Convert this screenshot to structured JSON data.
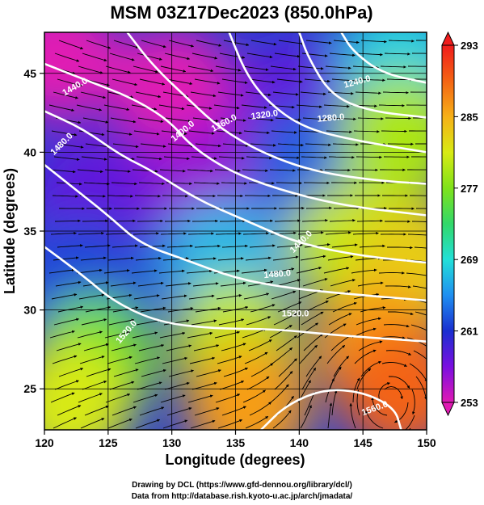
{
  "chart_data": {
    "type": "heatmap",
    "title": "MSM 03Z17Dec2023 (850.0hPa)",
    "xlabel": "Longitude (degrees)",
    "ylabel": "Latitude (degrees)",
    "xlim": [
      120,
      150
    ],
    "ylim": [
      22.4,
      47.6
    ],
    "x_ticks": [
      120,
      125,
      130,
      135,
      140,
      145,
      150
    ],
    "y_ticks": [
      25,
      30,
      35,
      40,
      45
    ],
    "x_tick_labels": [
      "120",
      "125",
      "130",
      "135",
      "140",
      "145",
      "150"
    ],
    "y_tick_labels": [
      "25",
      "30",
      "35",
      "40",
      "45"
    ],
    "grid": true,
    "colorbar": {
      "label_values": [
        293,
        285,
        277,
        269,
        261,
        253
      ],
      "labels": [
        "293",
        "285",
        "277",
        "269",
        "261",
        "253"
      ],
      "range": [
        253,
        293
      ],
      "colormap": [
        "#e01ab4",
        "#7a0fe0",
        "#1a2fd0",
        "#1f8ff0",
        "#22e0d8",
        "#32d86a",
        "#7fe21a",
        "#d8ea14",
        "#f6b018",
        "#f46414",
        "#f01c1c"
      ]
    },
    "temperature_field": [
      {
        "lon": 121,
        "lat": 46,
        "value": 253
      },
      {
        "lon": 130,
        "lat": 44,
        "value": 253
      },
      {
        "lon": 140,
        "lat": 43,
        "value": 258
      },
      {
        "lon": 148,
        "lat": 46,
        "value": 268
      },
      {
        "lon": 124,
        "lat": 37,
        "value": 258
      },
      {
        "lon": 133,
        "lat": 38,
        "value": 256
      },
      {
        "lon": 141,
        "lat": 39,
        "value": 263
      },
      {
        "lon": 148,
        "lat": 41,
        "value": 279
      },
      {
        "lon": 123,
        "lat": 32,
        "value": 262
      },
      {
        "lon": 134,
        "lat": 33,
        "value": 267
      },
      {
        "lon": 144,
        "lat": 34,
        "value": 280
      },
      {
        "lon": 149,
        "lat": 33,
        "value": 283
      },
      {
        "lon": 124,
        "lat": 27,
        "value": 276
      },
      {
        "lon": 135,
        "lat": 28,
        "value": 280
      },
      {
        "lon": 146,
        "lat": 28,
        "value": 286
      },
      {
        "lon": 122,
        "lat": 24,
        "value": 281
      },
      {
        "lon": 136,
        "lat": 24,
        "value": 286
      },
      {
        "lon": 148,
        "lat": 25,
        "value": 289
      }
    ],
    "contour_labels": [
      "1440.0",
      "1400.0",
      "1480.0",
      "1360.0",
      "1320.0",
      "1240.0",
      "1280.0",
      "1440.0",
      "1480.0",
      "1520.0",
      "1520.0",
      "1560.0"
    ],
    "contours": [
      {
        "level": "1240.0",
        "points": [
          [
            143.3,
            47.6
          ],
          [
            144.2,
            46.4
          ],
          [
            146.5,
            45.0
          ],
          [
            150,
            44.4
          ]
        ]
      },
      {
        "level": "1280.0",
        "points": [
          [
            140.0,
            47.6
          ],
          [
            140.7,
            46.0
          ],
          [
            142.5,
            43.6
          ],
          [
            145.5,
            42.6
          ],
          [
            150,
            42.2
          ]
        ]
      },
      {
        "level": "1320.0",
        "points": [
          [
            134.5,
            47.6
          ],
          [
            135.8,
            45.0
          ],
          [
            137.5,
            43.2
          ],
          [
            140.2,
            41.6
          ],
          [
            144.0,
            40.8
          ],
          [
            150,
            40.0
          ]
        ]
      },
      {
        "level": "1360.0",
        "points": [
          [
            126.5,
            47.6
          ],
          [
            128.5,
            45.5
          ],
          [
            131.5,
            43.2
          ],
          [
            133.8,
            41.5
          ],
          [
            137.0,
            40.0
          ],
          [
            141.0,
            38.8
          ],
          [
            146.0,
            38.2
          ],
          [
            150,
            38.0
          ]
        ]
      },
      {
        "level": "1400.0",
        "points": [
          [
            120,
            45.6
          ],
          [
            123.5,
            44.5
          ],
          [
            127.0,
            43.4
          ],
          [
            129.8,
            42.0
          ],
          [
            131.5,
            40.4
          ],
          [
            134.5,
            38.8
          ],
          [
            138.5,
            37.6
          ],
          [
            143.5,
            36.6
          ],
          [
            150,
            36.0
          ]
        ]
      },
      {
        "level": "1440.0",
        "points": [
          [
            120,
            42.6
          ],
          [
            123.0,
            41.5
          ],
          [
            126.0,
            39.8
          ],
          [
            128.5,
            38.8
          ],
          [
            132.0,
            37.0
          ],
          [
            136.0,
            35.6
          ],
          [
            140.0,
            34.2
          ],
          [
            145.0,
            33.4
          ],
          [
            150,
            33.0
          ]
        ]
      },
      {
        "level": "1480.0",
        "points": [
          [
            120,
            39.2
          ],
          [
            122.5,
            37.6
          ],
          [
            125.0,
            36.0
          ],
          [
            127.5,
            34.2
          ],
          [
            131.0,
            33.2
          ],
          [
            135.0,
            32.0
          ],
          [
            139.0,
            31.4
          ],
          [
            144.0,
            31.0
          ],
          [
            150,
            30.6
          ]
        ]
      },
      {
        "level": "1520.0",
        "points": [
          [
            120,
            34.0
          ],
          [
            123.0,
            32.2
          ],
          [
            125.5,
            30.5
          ],
          [
            129.0,
            29.2
          ],
          [
            133.5,
            28.8
          ],
          [
            138.0,
            28.8
          ],
          [
            143.0,
            28.4
          ],
          [
            150,
            28.0
          ]
        ]
      },
      {
        "level": "1560.0",
        "points": [
          [
            137.0,
            22.4
          ],
          [
            139.0,
            24.0
          ],
          [
            142.0,
            25.0
          ],
          [
            145.0,
            24.8
          ],
          [
            147.5,
            23.8
          ],
          [
            148.0,
            22.4
          ]
        ]
      }
    ]
  }
}
